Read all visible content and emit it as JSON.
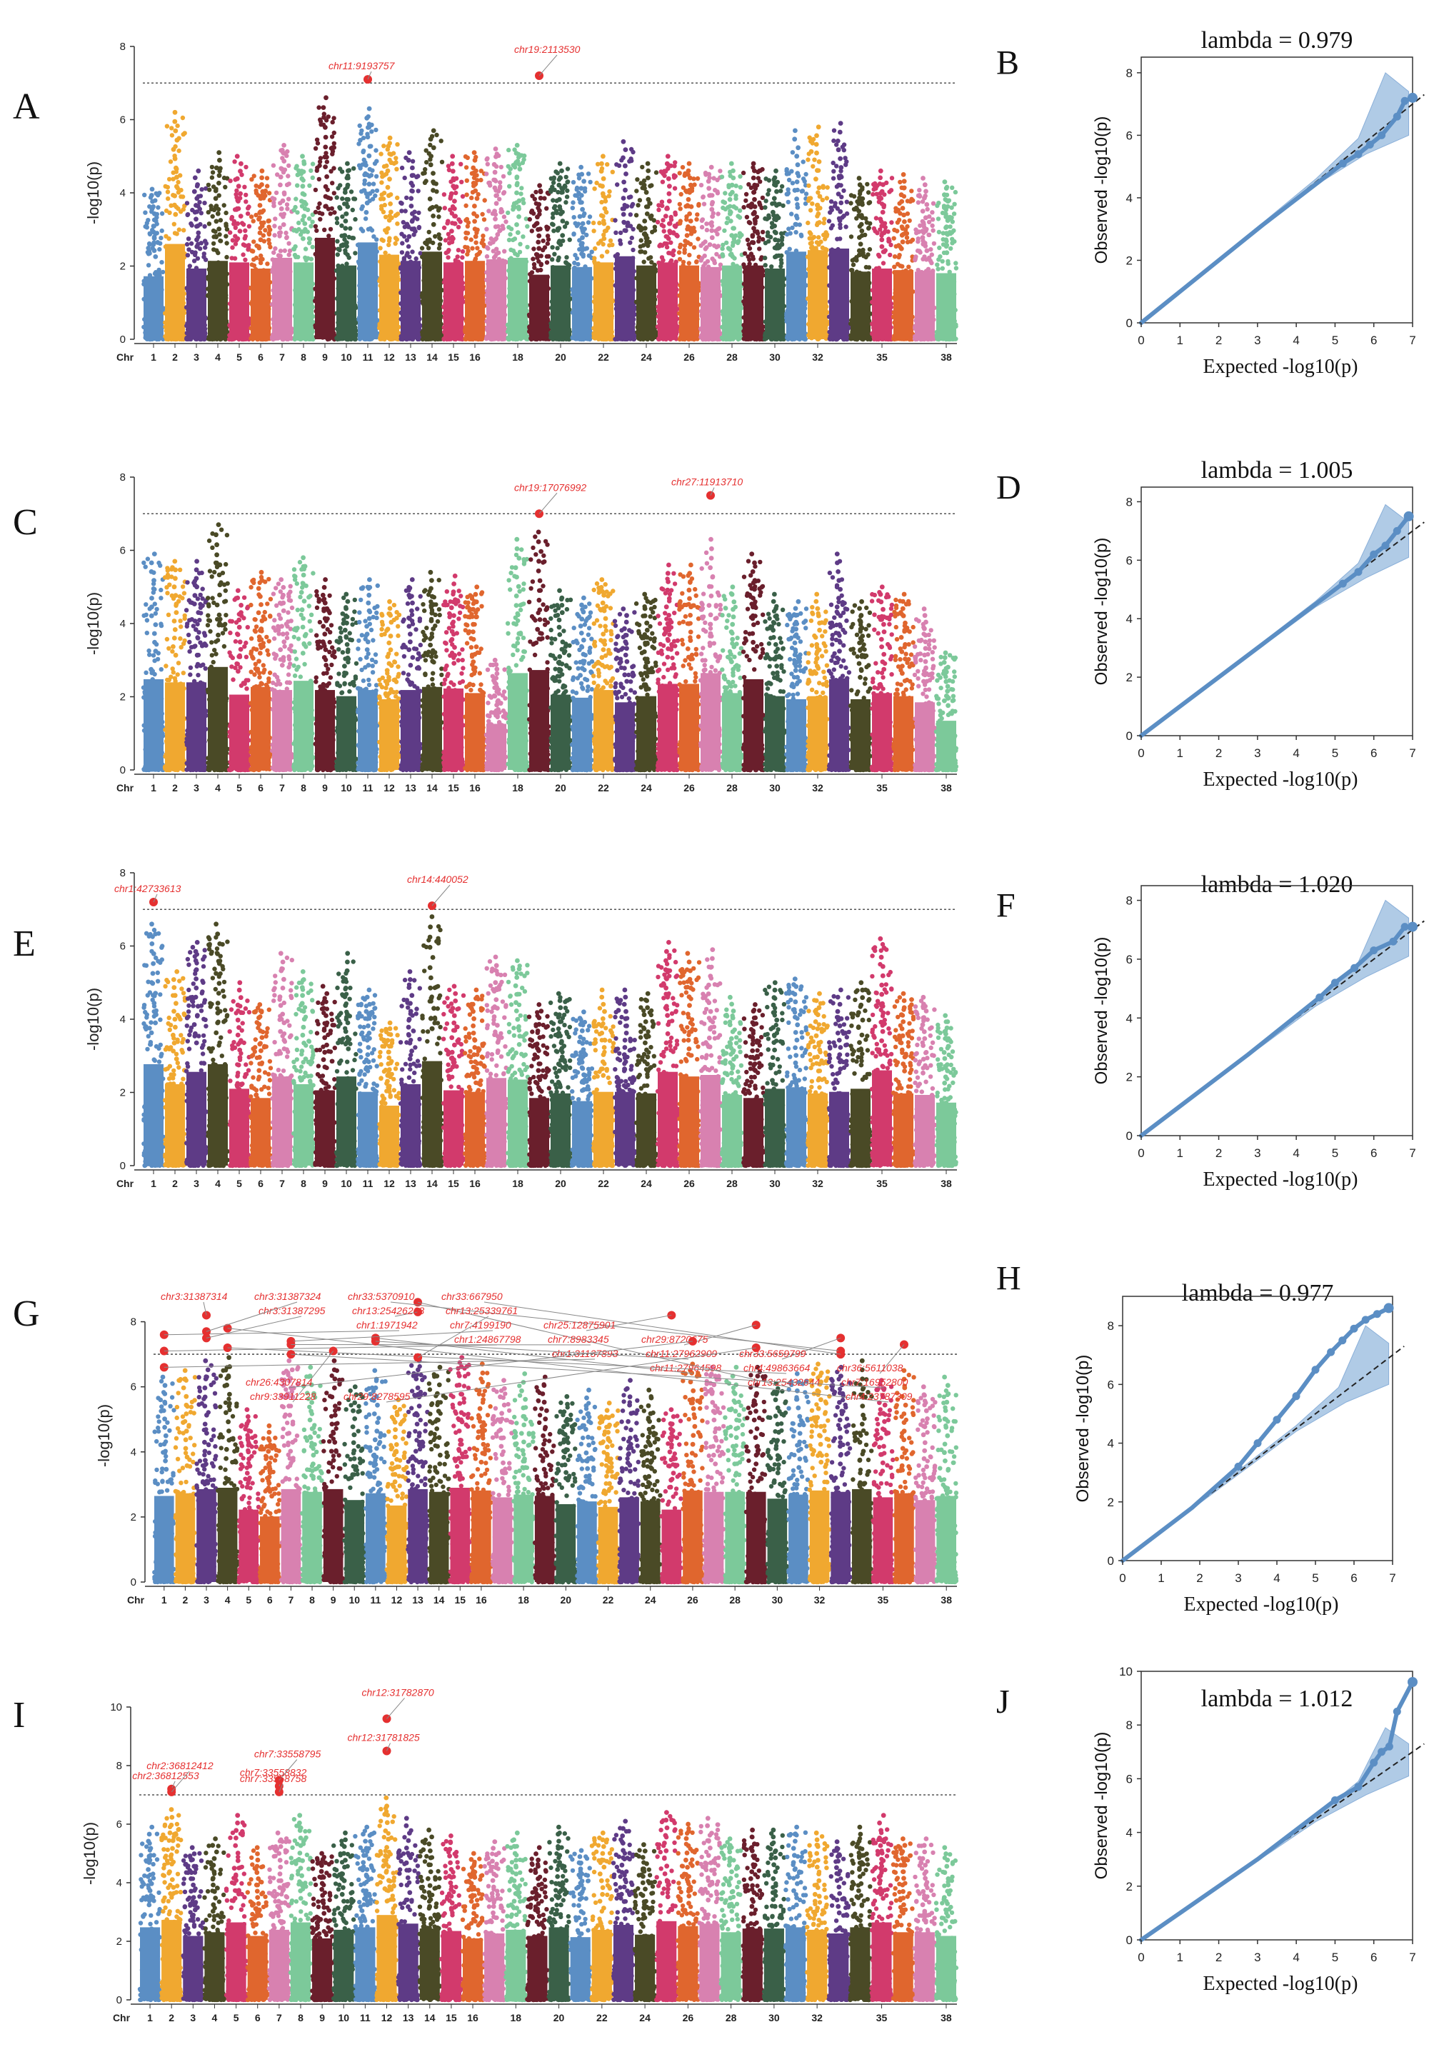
{
  "figure": {
    "colors": {
      "palette": [
        "#5b8ec4",
        "#f0a830",
        "#5e3b86",
        "#4a4a26",
        "#d23a6c",
        "#e0662e",
        "#d881b0",
        "#7cc99a",
        "#6a1f2c",
        "#3a6048"
      ],
      "highlight": "#e53030",
      "annotation": "#e53030",
      "qq_band": "#9dbfe0",
      "qq_points": "#5b8ec4",
      "threshold_line": "#555555"
    }
  },
  "chart_data": [
    {
      "panel": "A",
      "type": "scatter",
      "subtype": "manhattan",
      "ylabel": "-log10(p)",
      "chr_label": "Chr",
      "ylim": [
        0,
        8
      ],
      "yticks": [
        0,
        2,
        4,
        6,
        8
      ],
      "threshold": 7.0,
      "x_tick_labels": [
        "1",
        "2",
        "3",
        "4",
        "5",
        "6",
        "7",
        "8",
        "9",
        "10",
        "11",
        "12",
        "13",
        "14",
        "15",
        "16",
        "18",
        "20",
        "22",
        "24",
        "26",
        "28",
        "30",
        "32",
        "35",
        "38"
      ],
      "chromosome_peaks": [
        4.1,
        6.2,
        4.6,
        5.1,
        5.0,
        4.6,
        5.3,
        5.0,
        6.6,
        4.8,
        6.3,
        5.5,
        5.1,
        5.7,
        5.0,
        5.1,
        5.2,
        5.3,
        4.2,
        4.8,
        4.7,
        5.0,
        5.4,
        4.8,
        5.0,
        4.8,
        4.7,
        4.8,
        4.8,
        4.6,
        5.7,
        5.8,
        5.9,
        4.4,
        4.6,
        4.5,
        4.4,
        4.3
      ],
      "significant_snps": [
        {
          "label": "chr11:9193757",
          "chr": 11,
          "value": 7.1
        },
        {
          "label": "chr19:2113530",
          "chr": 19,
          "value": 7.2
        }
      ]
    },
    {
      "panel": "B",
      "type": "scatter",
      "subtype": "qq",
      "title": "lambda = 0.979",
      "xlabel": "Expected -log10(p)",
      "ylabel": "Observed -log10(p)",
      "xlim": [
        0,
        7
      ],
      "ylim": [
        0,
        8.5
      ],
      "xticks": [
        0,
        1,
        2,
        3,
        4,
        5,
        6,
        7
      ],
      "yticks": [
        0,
        2,
        4,
        6,
        8
      ],
      "band_end": [
        6.0,
        8.0
      ],
      "lambda": 0.979,
      "tail_points": [
        [
          5.2,
          5.1
        ],
        [
          5.6,
          5.4
        ],
        [
          5.9,
          5.7
        ],
        [
          6.2,
          6.0
        ],
        [
          6.6,
          6.6
        ],
        [
          6.8,
          7.1
        ],
        [
          7.0,
          7.2
        ]
      ]
    },
    {
      "panel": "C",
      "type": "scatter",
      "subtype": "manhattan",
      "ylabel": "-log10(p)",
      "chr_label": "Chr",
      "ylim": [
        0,
        8
      ],
      "yticks": [
        0,
        2,
        4,
        6,
        8
      ],
      "threshold": 7.0,
      "x_tick_labels": [
        "1",
        "2",
        "3",
        "4",
        "5",
        "6",
        "7",
        "8",
        "9",
        "10",
        "11",
        "12",
        "13",
        "14",
        "15",
        "16",
        "18",
        "20",
        "22",
        "24",
        "26",
        "28",
        "30",
        "32",
        "35",
        "38"
      ],
      "chromosome_peaks": [
        5.9,
        5.7,
        5.7,
        6.7,
        4.9,
        5.4,
        5.2,
        5.8,
        5.2,
        4.8,
        5.2,
        4.6,
        5.2,
        5.4,
        5.3,
        5.0,
        3.0,
        6.3,
        6.5,
        4.9,
        4.7,
        5.2,
        4.4,
        4.8,
        5.6,
        5.6,
        6.3,
        5.0,
        5.9,
        4.8,
        4.6,
        4.8,
        5.9,
        4.6,
        5.0,
        4.8,
        4.4,
        3.2
      ],
      "significant_snps": [
        {
          "label": "chr27:11913710",
          "chr": 27,
          "value": 7.5
        },
        {
          "label": "chr19:17076992",
          "chr": 19,
          "value": 7.0
        }
      ]
    },
    {
      "panel": "D",
      "type": "scatter",
      "subtype": "qq",
      "title": "lambda = 1.005",
      "xlabel": "Expected -log10(p)",
      "ylabel": "Observed -log10(p)",
      "xlim": [
        0,
        7
      ],
      "ylim": [
        0,
        8.5
      ],
      "xticks": [
        0,
        1,
        2,
        3,
        4,
        5,
        6,
        7
      ],
      "yticks": [
        0,
        2,
        4,
        6,
        8
      ],
      "band_end": [
        6.1,
        7.9
      ],
      "lambda": 1.005,
      "tail_points": [
        [
          5.2,
          5.2
        ],
        [
          5.6,
          5.6
        ],
        [
          6.0,
          6.2
        ],
        [
          6.3,
          6.5
        ],
        [
          6.6,
          7.0
        ],
        [
          6.9,
          7.5
        ]
      ]
    },
    {
      "panel": "E",
      "type": "scatter",
      "subtype": "manhattan",
      "ylabel": "-log10(p)",
      "chr_label": "Chr",
      "ylim": [
        0,
        8
      ],
      "yticks": [
        0,
        2,
        4,
        6,
        8
      ],
      "threshold": 7.0,
      "x_tick_labels": [
        "1",
        "2",
        "3",
        "4",
        "5",
        "6",
        "7",
        "8",
        "9",
        "10",
        "11",
        "12",
        "13",
        "14",
        "15",
        "16",
        "18",
        "20",
        "22",
        "24",
        "26",
        "28",
        "30",
        "32",
        "35",
        "38"
      ],
      "chromosome_peaks": [
        6.6,
        5.3,
        6.1,
        6.6,
        5.0,
        4.4,
        5.8,
        5.3,
        4.9,
        5.8,
        4.8,
        3.9,
        5.3,
        6.8,
        4.9,
        4.8,
        5.7,
        5.6,
        4.4,
        4.7,
        4.2,
        4.8,
        4.8,
        4.7,
        6.1,
        5.8,
        5.9,
        4.6,
        4.4,
        5.0,
        5.1,
        4.7,
        4.8,
        5.0,
        6.2,
        4.7,
        4.6,
        4.1
      ],
      "significant_snps": [
        {
          "label": "chr1:42733613",
          "chr": 1,
          "value": 7.2
        },
        {
          "label": "chr14:440052",
          "chr": 14,
          "value": 7.1
        }
      ]
    },
    {
      "panel": "F",
      "type": "scatter",
      "subtype": "qq",
      "title": "lambda = 1.020",
      "xlabel": "Expected -log10(p)",
      "ylabel": "Observed -log10(p)",
      "xlim": [
        0,
        7
      ],
      "ylim": [
        0,
        8.5
      ],
      "xticks": [
        0,
        1,
        2,
        3,
        4,
        5,
        6,
        7
      ],
      "yticks": [
        0,
        2,
        4,
        6,
        8
      ],
      "band_end": [
        6.1,
        8.0
      ],
      "lambda": 1.02,
      "tail_points": [
        [
          4.6,
          4.7
        ],
        [
          5.0,
          5.2
        ],
        [
          5.5,
          5.7
        ],
        [
          6.0,
          6.3
        ],
        [
          6.5,
          6.6
        ],
        [
          6.8,
          7.1
        ],
        [
          7.0,
          7.1
        ]
      ]
    },
    {
      "panel": "G",
      "type": "scatter",
      "subtype": "manhattan",
      "ylabel": "-log10(p)",
      "chr_label": "Chr",
      "ylim": [
        0,
        9
      ],
      "yticks": [
        0,
        2,
        4,
        6,
        8
      ],
      "threshold": 7.0,
      "x_tick_labels": [
        "1",
        "2",
        "3",
        "4",
        "5",
        "6",
        "7",
        "8",
        "9",
        "10",
        "11",
        "12",
        "13",
        "14",
        "15",
        "16",
        "18",
        "20",
        "22",
        "24",
        "26",
        "28",
        "30",
        "32",
        "35",
        "38"
      ],
      "chromosome_peaks": [
        6.3,
        6.5,
        6.8,
        6.9,
        5.3,
        4.8,
        6.8,
        6.6,
        6.8,
        6.0,
        6.5,
        5.6,
        6.8,
        6.6,
        6.9,
        6.7,
        6.2,
        6.4,
        6.3,
        5.7,
        5.9,
        5.5,
        6.2,
        5.9,
        5.3,
        6.7,
        6.6,
        6.6,
        6.6,
        6.1,
        6.4,
        6.7,
        6.6,
        6.8,
        6.2,
        6.5,
        6.0,
        6.3
      ],
      "significant_snps": [
        {
          "label": "chr3:31387314",
          "chr": 3,
          "value": 8.2
        },
        {
          "label": "chr3:31387295",
          "chr": 3,
          "value": 7.5
        },
        {
          "label": "chr1:1971942",
          "chr": 1,
          "value": 7.6
        },
        {
          "label": "chr1:24867798",
          "chr": 1,
          "value": 7.1
        },
        {
          "label": "chr1:31137893",
          "chr": 1,
          "value": 6.6
        },
        {
          "label": "chr11:27964598",
          "chr": 11,
          "value": 7.5
        },
        {
          "label": "chr13:25432644",
          "chr": 13,
          "value": 8.6
        },
        {
          "label": "chr4:23787309",
          "chr": 4,
          "value": 7.8
        },
        {
          "label": "chr3:31387324",
          "chr": 3,
          "value": 7.7
        },
        {
          "label": "chr13:25426268",
          "chr": 13,
          "value": 8.3
        },
        {
          "label": "chr7:4199190",
          "chr": 7,
          "value": 7.4
        },
        {
          "label": "chr7:8983345",
          "chr": 7,
          "value": 7.3
        },
        {
          "label": "chr11:27962909",
          "chr": 11,
          "value": 7.4
        },
        {
          "label": "chr4:49863664",
          "chr": 4,
          "value": 7.2
        },
        {
          "label": "chr7:16952800",
          "chr": 7,
          "value": 7.0
        },
        {
          "label": "chr9:33911228",
          "chr": 9,
          "value": 7.1
        },
        {
          "label": "chr33:5370910",
          "chr": 33,
          "value": 7.1
        },
        {
          "label": "chr13:25339761",
          "chr": 13,
          "value": 6.9
        },
        {
          "label": "chr25:12875901",
          "chr": 25,
          "value": 8.2
        },
        {
          "label": "chr29:8720675",
          "chr": 29,
          "value": 7.9
        },
        {
          "label": "chr33:5659799",
          "chr": 33,
          "value": 7.5
        },
        {
          "label": "chr36:5611038",
          "chr": 36,
          "value": 7.3
        },
        {
          "label": "chr26:4307814",
          "chr": 26,
          "value": 7.4
        },
        {
          "label": "chr29:8278595",
          "chr": 29,
          "value": 7.2
        },
        {
          "label": "chr33:667950",
          "chr": 33,
          "value": 7.0
        }
      ]
    },
    {
      "panel": "H",
      "type": "scatter",
      "subtype": "qq",
      "title": "lambda = 0.977",
      "xlabel": "Expected -log10(p)",
      "ylabel": "Observed -log10(p)",
      "xlim": [
        0,
        7
      ],
      "ylim": [
        0,
        9
      ],
      "xticks": [
        0,
        1,
        2,
        3,
        4,
        5,
        6,
        7
      ],
      "yticks": [
        0,
        2,
        4,
        6,
        8
      ],
      "band_end": [
        6.0,
        8.0
      ],
      "lambda": 0.977,
      "tail_points": [
        [
          3.0,
          3.2
        ],
        [
          3.5,
          4.0
        ],
        [
          4.0,
          4.8
        ],
        [
          4.5,
          5.6
        ],
        [
          5.0,
          6.5
        ],
        [
          5.4,
          7.1
        ],
        [
          5.7,
          7.5
        ],
        [
          6.0,
          7.9
        ],
        [
          6.3,
          8.2
        ],
        [
          6.6,
          8.4
        ],
        [
          6.9,
          8.6
        ]
      ]
    },
    {
      "panel": "I",
      "type": "scatter",
      "subtype": "manhattan",
      "ylabel": "-log10(p)",
      "chr_label": "Chr",
      "ylim": [
        0,
        10
      ],
      "yticks": [
        0,
        2,
        4,
        6,
        8,
        10
      ],
      "threshold": 7.0,
      "x_tick_labels": [
        "1",
        "2",
        "3",
        "4",
        "5",
        "6",
        "7",
        "8",
        "9",
        "10",
        "11",
        "12",
        "13",
        "14",
        "15",
        "16",
        "18",
        "20",
        "22",
        "24",
        "26",
        "28",
        "30",
        "32",
        "35",
        "38"
      ],
      "chromosome_peaks": [
        5.9,
        6.5,
        5.2,
        5.5,
        6.3,
        5.2,
        5.7,
        6.3,
        5.0,
        5.7,
        5.9,
        6.9,
        6.2,
        5.8,
        5.6,
        5.0,
        5.4,
        5.7,
        5.2,
        5.9,
        5.1,
        5.7,
        6.1,
        5.3,
        6.4,
        6.0,
        6.2,
        5.5,
        5.8,
        5.8,
        5.9,
        5.7,
        5.4,
        5.9,
        6.3,
        5.5,
        5.5,
        5.2
      ],
      "significant_snps": [
        {
          "label": "chr2:36812553",
          "chr": 2,
          "value": 7.2
        },
        {
          "label": "chr2:36812412",
          "chr": 2,
          "value": 7.1
        },
        {
          "label": "chr7:33558832",
          "chr": 7,
          "value": 7.3
        },
        {
          "label": "chr7:33558795",
          "chr": 7,
          "value": 7.5
        },
        {
          "label": "chr7:33558758",
          "chr": 7,
          "value": 7.1
        },
        {
          "label": "chr12:31782870",
          "chr": 12,
          "value": 9.6
        },
        {
          "label": "chr12:31781825",
          "chr": 12,
          "value": 8.5
        }
      ]
    },
    {
      "panel": "J",
      "type": "scatter",
      "subtype": "qq",
      "title": "lambda = 1.012",
      "xlabel": "Expected -log10(p)",
      "ylabel": "Observed -log10(p)",
      "xlim": [
        0,
        7
      ],
      "ylim": [
        0,
        10
      ],
      "xticks": [
        0,
        1,
        2,
        3,
        4,
        5,
        6,
        7
      ],
      "yticks": [
        0,
        2,
        4,
        6,
        8,
        10
      ],
      "band_end": [
        6.1,
        7.9
      ],
      "lambda": 1.012,
      "tail_points": [
        [
          5.0,
          5.2
        ],
        [
          5.6,
          5.7
        ],
        [
          6.0,
          6.6
        ],
        [
          6.2,
          7.0
        ],
        [
          6.4,
          7.2
        ],
        [
          6.6,
          8.5
        ],
        [
          7.0,
          9.6
        ]
      ]
    }
  ]
}
